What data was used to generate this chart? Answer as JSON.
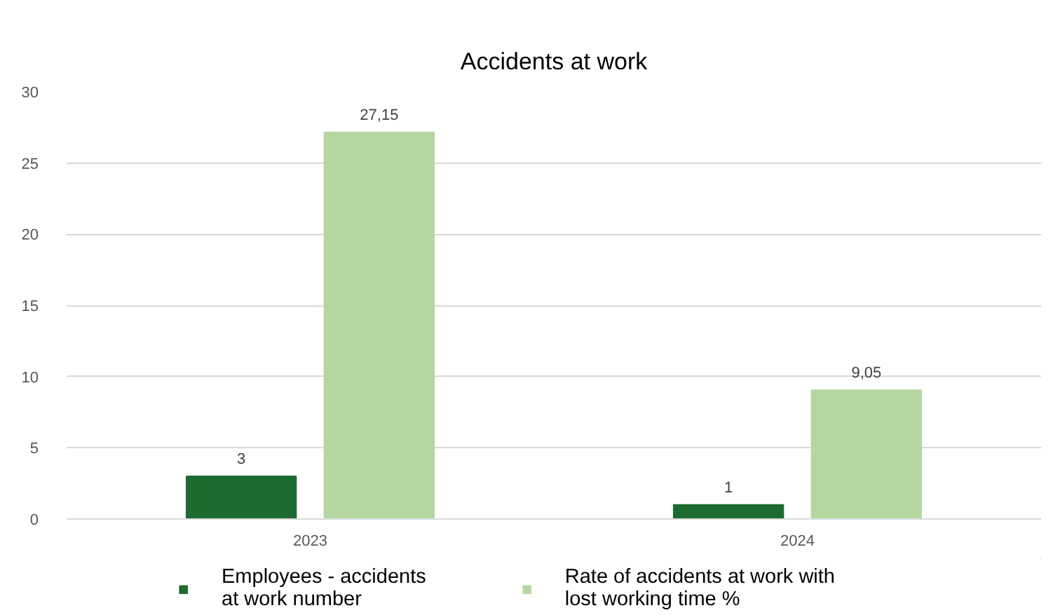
{
  "chart_data": {
    "type": "bar",
    "title": "Accidents at work",
    "categories": [
      "2023",
      "2024"
    ],
    "series": [
      {
        "name": "Employees - accidents at work number",
        "color": "#1e6b31",
        "values": [
          3,
          1
        ],
        "value_labels": [
          "3",
          "1"
        ]
      },
      {
        "name": "Rate of accidents at work with lost working time %",
        "color": "#b5d6a0",
        "values": [
          27.15,
          9.05
        ],
        "value_labels": [
          "27,15",
          "9,05"
        ]
      }
    ],
    "ylim": [
      0,
      30
    ],
    "yticks": [
      0,
      5,
      10,
      15,
      20,
      25,
      30
    ],
    "grid": "y",
    "legend": "bottom"
  }
}
